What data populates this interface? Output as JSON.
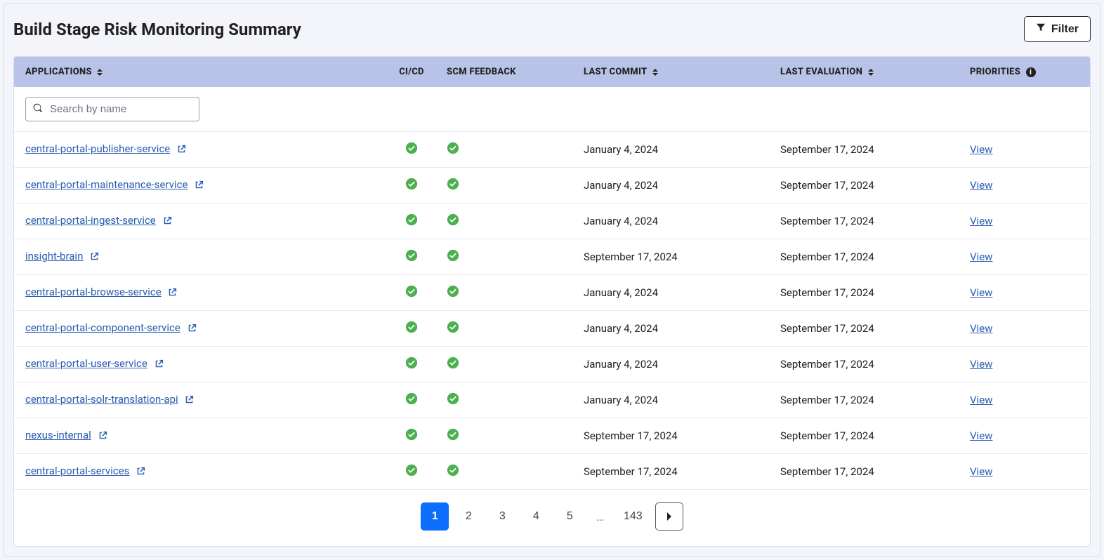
{
  "page": {
    "title": "Build Stage Risk Monitoring Summary",
    "filter_label": "Filter",
    "search_placeholder": "Search by name"
  },
  "columns": {
    "applications": "APPLICATIONS",
    "cicd": "CI/CD",
    "scm": "SCM FEEDBACK",
    "last_commit": "LAST COMMIT",
    "last_evaluation": "LAST EVALUATION",
    "priorities": "PRIORITIES"
  },
  "colors": {
    "header_bg": "#b8c3e8",
    "link": "#2a5db0",
    "check_ok": "#4caf50",
    "page_active_bg": "#0d6efd",
    "page_active_fg": "#ffffff",
    "panel_bg": "#f3f5fa",
    "border": "#d8dde6"
  },
  "view_label": "View",
  "rows": [
    {
      "name": "central-portal-publisher-service",
      "cicd": true,
      "scm": true,
      "last_commit": "January 4, 2024",
      "last_eval": "September 17, 2024"
    },
    {
      "name": "central-portal-maintenance-service",
      "cicd": true,
      "scm": true,
      "last_commit": "January 4, 2024",
      "last_eval": "September 17, 2024"
    },
    {
      "name": "central-portal-ingest-service",
      "cicd": true,
      "scm": true,
      "last_commit": "January 4, 2024",
      "last_eval": "September 17, 2024"
    },
    {
      "name": "insight-brain",
      "cicd": true,
      "scm": true,
      "last_commit": "September 17, 2024",
      "last_eval": "September 17, 2024"
    },
    {
      "name": "central-portal-browse-service",
      "cicd": true,
      "scm": true,
      "last_commit": "January 4, 2024",
      "last_eval": "September 17, 2024"
    },
    {
      "name": "central-portal-component-service",
      "cicd": true,
      "scm": true,
      "last_commit": "January 4, 2024",
      "last_eval": "September 17, 2024"
    },
    {
      "name": "central-portal-user-service",
      "cicd": true,
      "scm": true,
      "last_commit": "January 4, 2024",
      "last_eval": "September 17, 2024"
    },
    {
      "name": "central-portal-solr-translation-api",
      "cicd": true,
      "scm": true,
      "last_commit": "January 4, 2024",
      "last_eval": "September 17, 2024"
    },
    {
      "name": "nexus-internal",
      "cicd": true,
      "scm": true,
      "last_commit": "September 17, 2024",
      "last_eval": "September 17, 2024"
    },
    {
      "name": "central-portal-services",
      "cicd": true,
      "scm": true,
      "last_commit": "September 17, 2024",
      "last_eval": "September 17, 2024"
    }
  ],
  "pagination": {
    "pages": [
      "1",
      "2",
      "3",
      "4",
      "5"
    ],
    "ellipsis": "…",
    "last_page": "143",
    "current": "1"
  }
}
